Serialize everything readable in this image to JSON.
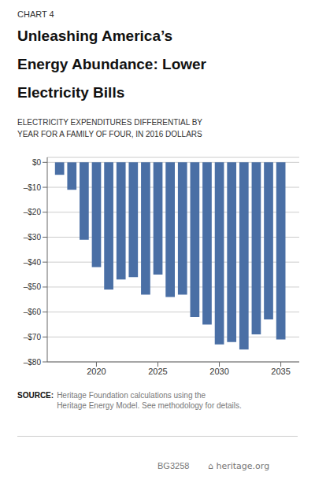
{
  "chart_data": {
    "type": "bar",
    "title": "Unleashing America’s\nEnergy Abundance: Lower\nElectricity Bills",
    "subtitle": "ELECTRICITY EXPENDITURES DIFFERENTIAL BY\nYEAR FOR A FAMILY OF FOUR, IN 2016 DOLLARS",
    "annotations": [
      "CHART 4",
      "SOURCE:",
      "Heritage Foundation calculations using the\nHeritage Energy Model. See methodology for details.",
      "BG3258",
      "⌂ heritage.org"
    ],
    "x": [
      2017,
      2018,
      2019,
      2020,
      2021,
      2022,
      2023,
      2024,
      2025,
      2026,
      2027,
      2028,
      2029,
      2030,
      2031,
      2032,
      2033,
      2034,
      2035
    ],
    "values": [
      -5,
      -11,
      -31,
      -42,
      -51,
      -47,
      -46,
      -53,
      -45,
      -54,
      -53,
      -62,
      -65,
      -73,
      -72,
      -75,
      -69,
      -63,
      -71
    ],
    "color": "#4a6fa5",
    "xlim": [
      2016,
      2036.5
    ],
    "xticks": [
      2020,
      2025,
      2030,
      2035
    ],
    "ylim": [
      -80,
      2
    ],
    "yticks": [
      {
        "value": 0,
        "label": "$0"
      },
      {
        "value": -10,
        "label": "–$10"
      },
      {
        "value": -20,
        "label": "–$20"
      },
      {
        "value": -30,
        "label": "–$30"
      },
      {
        "value": -40,
        "label": "–$40"
      },
      {
        "value": -50,
        "label": "–$50"
      },
      {
        "value": -60,
        "label": "–$60"
      },
      {
        "value": -70,
        "label": "–$70"
      },
      {
        "value": -80,
        "label": "–$80"
      }
    ],
    "grid": true
  }
}
